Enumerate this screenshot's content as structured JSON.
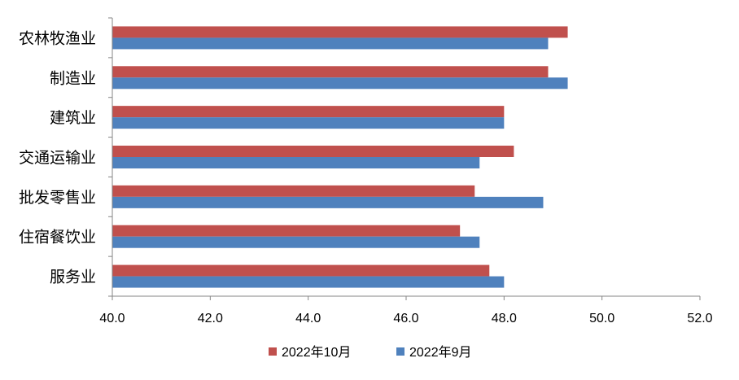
{
  "chart_data": {
    "type": "bar",
    "orientation": "horizontal",
    "categories": [
      "农林牧渔业",
      "制造业",
      "建筑业",
      "交通运输业",
      "批发零售业",
      "住宿餐饮业",
      "服务业"
    ],
    "series": [
      {
        "name": "2022年10月",
        "color": "#C0504D",
        "values": [
          49.3,
          48.9,
          48.0,
          48.2,
          47.4,
          47.1,
          47.7
        ]
      },
      {
        "name": "2022年9月",
        "color": "#4F81BD",
        "values": [
          48.9,
          49.3,
          48.0,
          47.5,
          48.8,
          47.5,
          48.0
        ]
      }
    ],
    "xlim": [
      40.0,
      52.0
    ],
    "xticks": [
      "40.0",
      "42.0",
      "44.0",
      "46.0",
      "48.0",
      "50.0",
      "52.0"
    ],
    "grid": false,
    "legend_position": "bottom"
  }
}
